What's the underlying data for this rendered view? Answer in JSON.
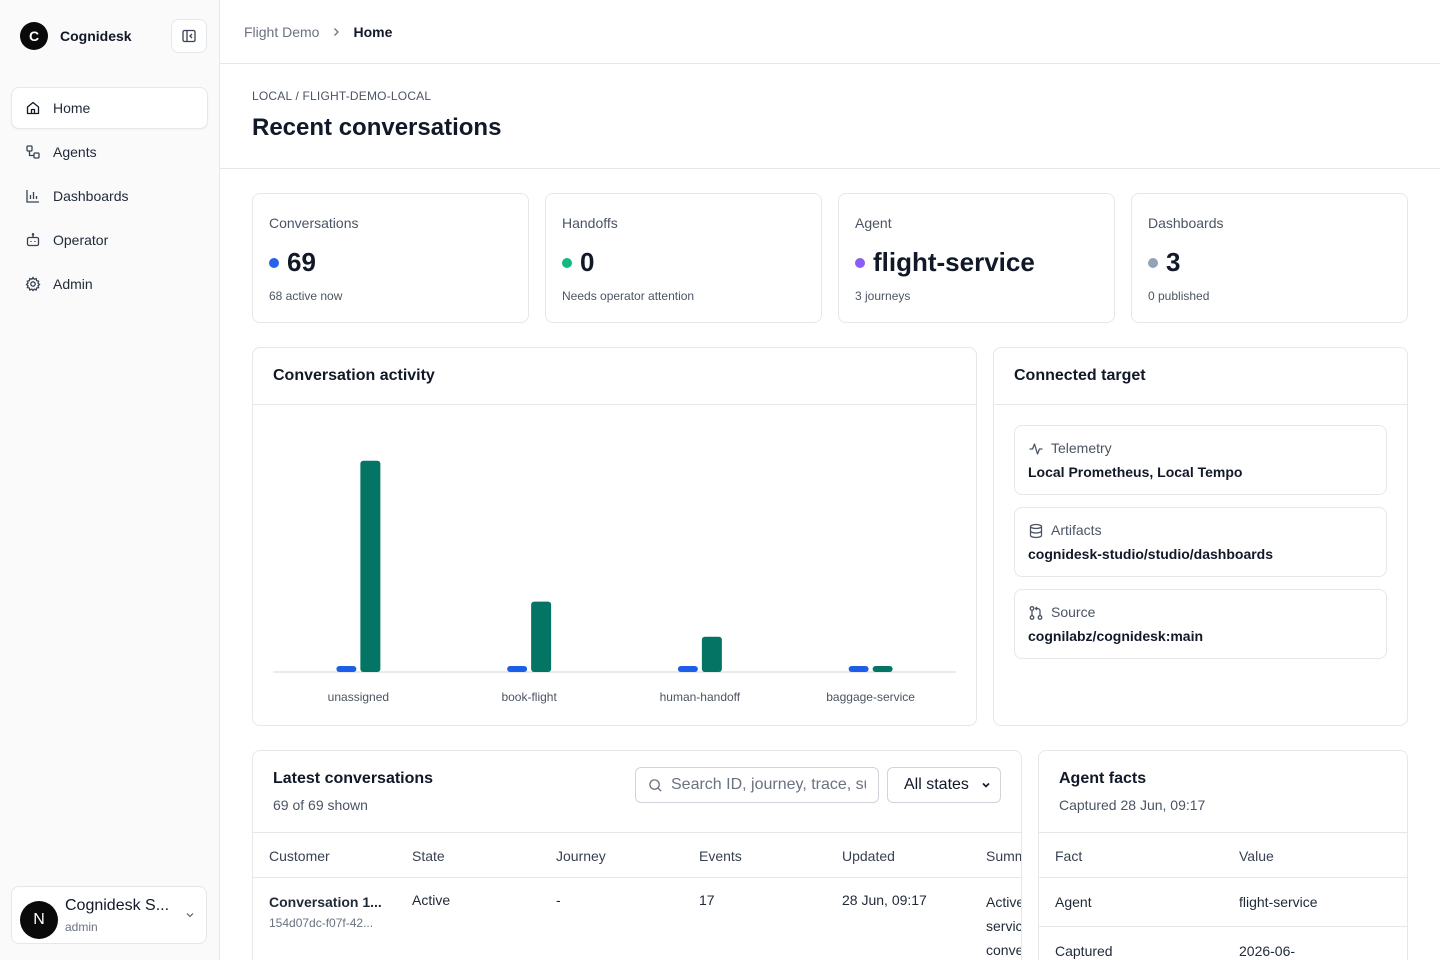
{
  "brand": {
    "logo_letter": "C",
    "name": "Cognidesk"
  },
  "nav": {
    "items": [
      {
        "label": "Home",
        "icon": "home-icon",
        "active": true
      },
      {
        "label": "Agents",
        "icon": "agents-icon"
      },
      {
        "label": "Dashboards",
        "icon": "bar-chart-icon"
      },
      {
        "label": "Operator",
        "icon": "bot-icon"
      },
      {
        "label": "Admin",
        "icon": "gear-icon"
      }
    ]
  },
  "user": {
    "avatar_letter": "N",
    "name": "Cognidesk S...",
    "role": "admin"
  },
  "breadcrumb": {
    "parent": "Flight Demo",
    "current": "Home"
  },
  "header": {
    "workspace_path": "LOCAL / FLIGHT-DEMO-LOCAL",
    "title": "Recent conversations"
  },
  "stats": [
    {
      "label": "Conversations",
      "value": "69",
      "sub": "68 active now",
      "dot_color": "#2563eb"
    },
    {
      "label": "Handoffs",
      "value": "0",
      "sub": "Needs operator attention",
      "dot_color": "#10b981"
    },
    {
      "label": "Agent",
      "value": "flight-service",
      "sub": "3 journeys",
      "dot_color": "#8b5cf6"
    },
    {
      "label": "Dashboards",
      "value": "3",
      "sub": "0 published",
      "dot_color": "#94a3b8"
    }
  ],
  "activity": {
    "title": "Conversation activity",
    "chart_data": {
      "type": "bar",
      "categories": [
        "unassigned",
        "book-flight",
        "human-handoff",
        "baggage-service"
      ],
      "series": [
        {
          "values": [
            1,
            1,
            1,
            1
          ],
          "color": "#1d5ee8"
        },
        {
          "values": [
            48,
            16,
            8,
            1
          ],
          "color": "#047565"
        }
      ],
      "ylim": [
        0,
        50
      ]
    }
  },
  "target": {
    "title": "Connected target",
    "items": [
      {
        "label": "Telemetry",
        "value": "Local Prometheus, Local Tempo",
        "icon": "activity-icon"
      },
      {
        "label": "Artifacts",
        "value": "cognidesk-studio/studio/dashboards",
        "icon": "database-icon"
      },
      {
        "label": "Source",
        "value": "cognilabz/cognidesk:main",
        "icon": "git-pull-request-icon"
      }
    ]
  },
  "conversations": {
    "title": "Latest conversations",
    "subtitle": "69 of 69 shown",
    "search_placeholder": "Search ID, journey, trace, su",
    "state_filter": "All states",
    "columns": [
      "Customer",
      "State",
      "Journey",
      "Events",
      "Updated",
      "Summ"
    ],
    "rows": [
      {
        "customer": "Conversation 1...",
        "customer_id": "154d07dc-f07f-42...",
        "state": "Active",
        "journey": "-",
        "events": "17",
        "updated": "28 Jun, 09:17",
        "summary_lines": [
          "Active",
          "servic",
          "conve"
        ]
      }
    ]
  },
  "facts": {
    "title": "Agent facts",
    "subtitle": "Captured 28 Jun, 09:17",
    "columns": [
      "Fact",
      "Value"
    ],
    "rows": [
      {
        "fact": "Agent",
        "value": "flight-service"
      },
      {
        "fact": "Captured",
        "value": "2026-06-"
      }
    ]
  }
}
